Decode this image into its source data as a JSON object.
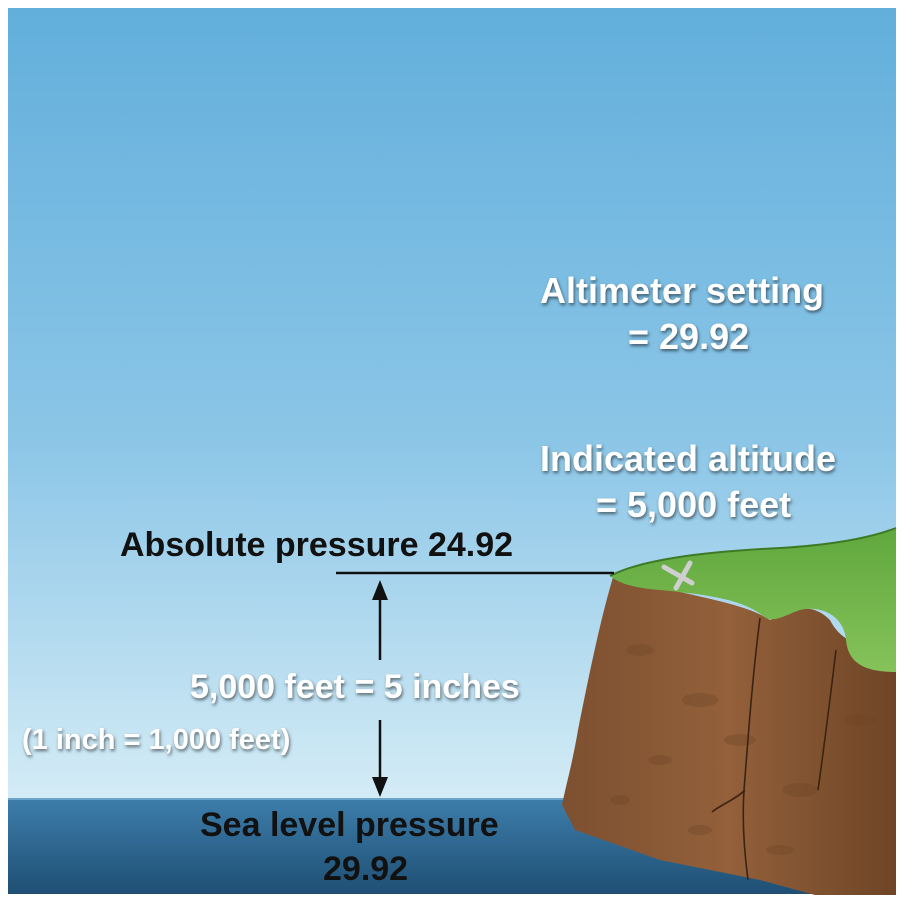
{
  "labels": {
    "altimeter_setting": "Altimeter setting",
    "altimeter_value": "= 29.92",
    "indicated_altitude": "Indicated altitude",
    "indicated_value": "= 5,000 feet",
    "absolute_pressure": "Absolute pressure 24.92",
    "height_equivalence": "5,000 feet = 5 inches",
    "conversion_note": "(1 inch = 1,000 feet)",
    "sea_level_pressure": "Sea level pressure",
    "sea_level_value": "29.92"
  },
  "colors": {
    "sky_top": "#62afdc",
    "sky_bottom": "#d4ecf6",
    "sea_top": "#3d7eac",
    "sea_bottom": "#1f4f73",
    "cliff": "#8a5a34",
    "cliff_dark": "#6e4526",
    "grass": "#6fb24a",
    "grass_dark": "#4e8f33",
    "marker": "#c9c9c9",
    "line": "#111111"
  },
  "icons": {
    "marker": "x-marker-icon",
    "arrow_up": "arrow-up-icon",
    "arrow_down": "arrow-down-icon"
  }
}
